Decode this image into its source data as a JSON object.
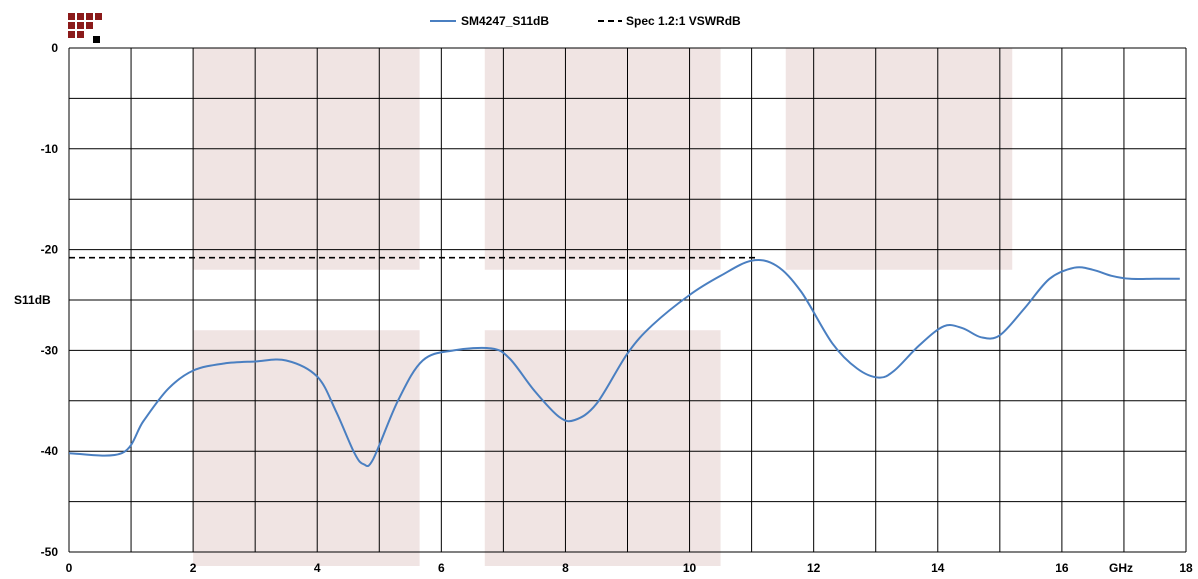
{
  "logo": {
    "name": "checkered-logo",
    "colors": [
      "#8b1a1a",
      "#000000"
    ]
  },
  "chart_data": {
    "type": "line",
    "title": "",
    "xlabel": "GHz",
    "ylabel": "S11dB",
    "xlim": [
      0,
      18
    ],
    "ylim": [
      -50,
      0
    ],
    "x_ticks": [
      0,
      2,
      4,
      6,
      8,
      10,
      12,
      14,
      16,
      18
    ],
    "x_gridlines": [
      0,
      1,
      2,
      3,
      4,
      5,
      6,
      7,
      8,
      9,
      10,
      11,
      12,
      13,
      14,
      15,
      16,
      17,
      18
    ],
    "y_ticks": [
      0,
      -10,
      -20,
      -30,
      -40,
      -50
    ],
    "y_gridlines": [
      0,
      -5,
      -10,
      -15,
      -20,
      -25,
      -30,
      -35,
      -40,
      -45,
      -50
    ],
    "grid": true,
    "legend_position": "top-center",
    "shaded_bands": [
      {
        "x": [
          2,
          5.65
        ],
        "y": [
          0,
          -22
        ]
      },
      {
        "x": [
          6.7,
          10.5
        ],
        "y": [
          0,
          -22
        ]
      },
      {
        "x": [
          11.55,
          15.2
        ],
        "y": [
          0,
          -22
        ]
      },
      {
        "x": [
          2,
          5.65
        ],
        "y": [
          -28,
          -51.5
        ]
      },
      {
        "x": [
          6.7,
          10.5
        ],
        "y": [
          -28,
          -51.5
        ]
      }
    ],
    "series": [
      {
        "name": "SM4247_S11dB",
        "color": "#4a7fc1",
        "style": "solid",
        "x": [
          0,
          0.85,
          1.2,
          1.6,
          2.0,
          2.5,
          3.0,
          3.5,
          4.0,
          4.3,
          4.6,
          4.75,
          4.9,
          5.3,
          5.7,
          6.2,
          6.8,
          7.1,
          7.5,
          7.9,
          8.15,
          8.5,
          9.0,
          9.4,
          10.0,
          10.5,
          11.0,
          11.4,
          11.8,
          12.3,
          12.7,
          13.05,
          13.3,
          13.7,
          14.1,
          14.4,
          14.7,
          15.0,
          15.4,
          15.8,
          16.2,
          16.5,
          16.8,
          17.1,
          17.5,
          17.9
        ],
        "y": [
          -40.2,
          -40.2,
          -37.0,
          -33.8,
          -32.0,
          -31.3,
          -31.1,
          -31.0,
          -32.6,
          -36.0,
          -40.2,
          -41.3,
          -40.8,
          -35.0,
          -31.0,
          -30.0,
          -29.8,
          -30.8,
          -34.0,
          -36.6,
          -36.9,
          -35.3,
          -30.3,
          -27.5,
          -24.5,
          -22.6,
          -21.1,
          -21.6,
          -24.2,
          -29.3,
          -31.8,
          -32.7,
          -32.0,
          -29.5,
          -27.6,
          -27.8,
          -28.7,
          -28.5,
          -25.8,
          -22.9,
          -21.8,
          -22.0,
          -22.6,
          -22.9,
          -22.9,
          -22.9
        ]
      },
      {
        "name": "Spec 1.2:1 VSWRdB",
        "color": "#000000",
        "style": "dashed",
        "x": [
          0,
          11.1
        ],
        "y": [
          -20.8,
          -20.8
        ]
      }
    ]
  }
}
